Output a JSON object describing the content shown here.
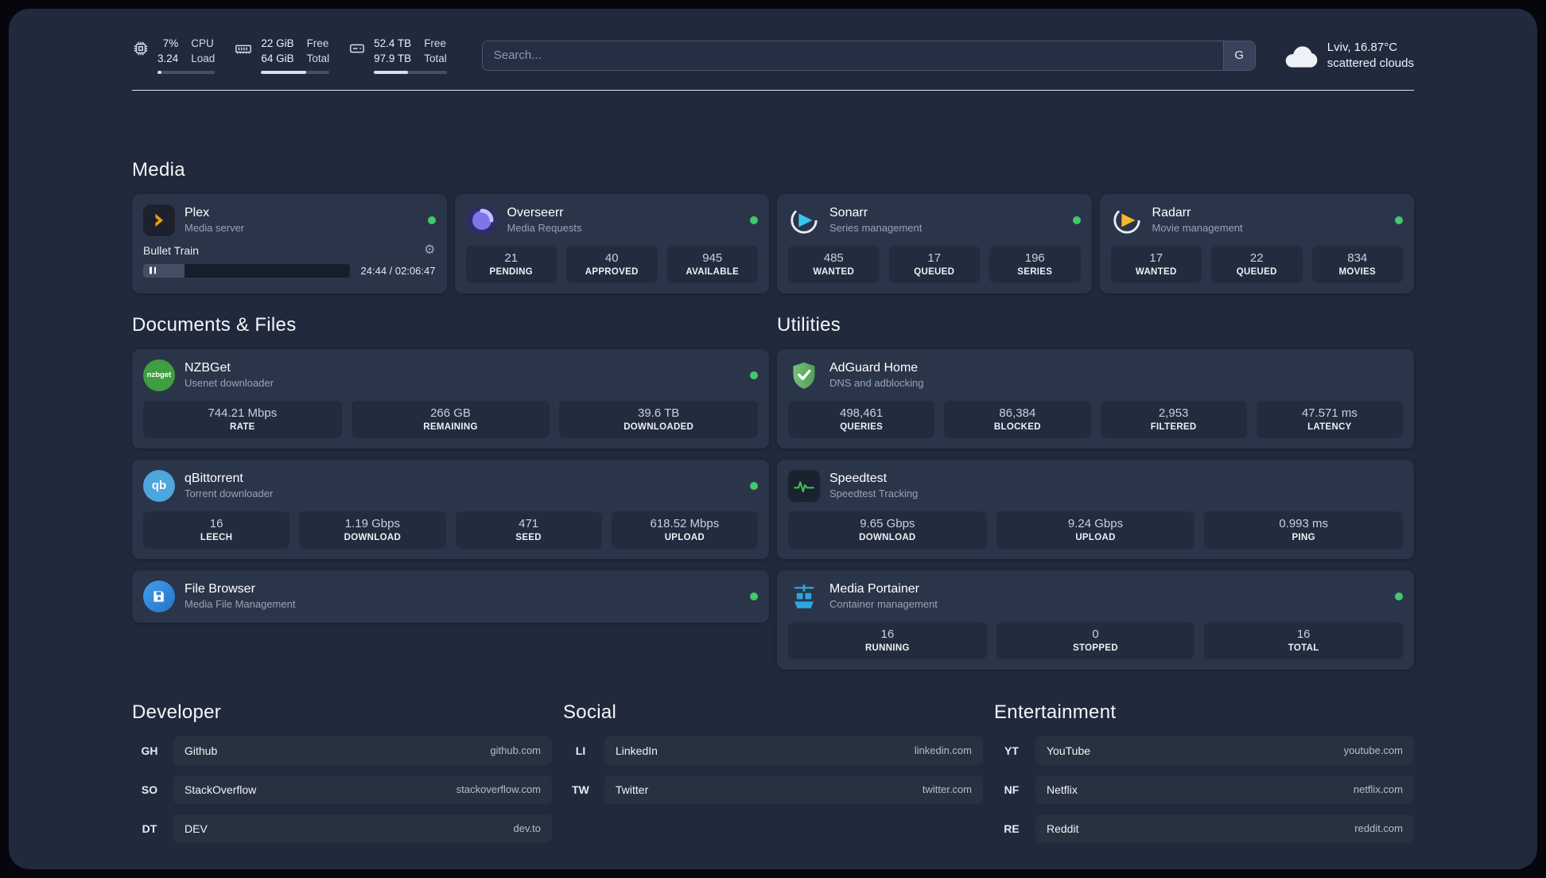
{
  "colors": {
    "status_online": "#41c96b",
    "plex_gold": "#e5a00d",
    "sonarr_blue": "#35c5f0",
    "radarr_yellow": "#f7b82a",
    "overseerr_purple": "#7d76e8",
    "nzbget_green": "#3f9e3f",
    "qbittorrent_blue": "#4da6dc",
    "filebrowser_blue": "#2f8fdf",
    "adguard_green": "#67b671",
    "speedtest_green": "#40c057",
    "portainer_blue": "#29a6dd"
  },
  "topbar": {
    "cpu": {
      "values": [
        "7%",
        "3.24"
      ],
      "labels": [
        "CPU",
        "Load"
      ],
      "progress": 7
    },
    "ram": {
      "values": [
        "22 GiB",
        "64 GiB"
      ],
      "labels": [
        "Free",
        "Total"
      ],
      "progress": 66
    },
    "disk": {
      "values": [
        "52.4 TB",
        "97.9 TB"
      ],
      "labels": [
        "Free",
        "Total"
      ],
      "progress": 47
    },
    "search": {
      "placeholder": "Search...",
      "engine_label": "G"
    },
    "weather": {
      "location": "Lviv, 16.87°C",
      "condition": "scattered clouds"
    }
  },
  "media": {
    "title": "Media",
    "apps": [
      {
        "name": "Plex",
        "subtitle": "Media server",
        "player": {
          "track": "Bullet Train",
          "time": "24:44 / 02:06:47",
          "progress": 20
        }
      },
      {
        "name": "Overseerr",
        "subtitle": "Media Requests",
        "stats": [
          {
            "value": "21",
            "label": "PENDING"
          },
          {
            "value": "40",
            "label": "APPROVED"
          },
          {
            "value": "945",
            "label": "AVAILABLE"
          }
        ]
      },
      {
        "name": "Sonarr",
        "subtitle": "Series management",
        "stats": [
          {
            "value": "485",
            "label": "WANTED"
          },
          {
            "value": "17",
            "label": "QUEUED"
          },
          {
            "value": "196",
            "label": "SERIES"
          }
        ]
      },
      {
        "name": "Radarr",
        "subtitle": "Movie management",
        "stats": [
          {
            "value": "17",
            "label": "WANTED"
          },
          {
            "value": "22",
            "label": "QUEUED"
          },
          {
            "value": "834",
            "label": "MOVIES"
          }
        ]
      }
    ]
  },
  "documents": {
    "title": "Documents & Files",
    "apps": [
      {
        "name": "NZBGet",
        "subtitle": "Usenet downloader",
        "icon_label": "nzbget",
        "stats": [
          {
            "value": "744.21 Mbps",
            "label": "RATE"
          },
          {
            "value": "266 GB",
            "label": "REMAINING"
          },
          {
            "value": "39.6 TB",
            "label": "DOWNLOADED"
          }
        ]
      },
      {
        "name": "qBittorrent",
        "subtitle": "Torrent downloader",
        "icon_label": "qb",
        "stats": [
          {
            "value": "16",
            "label": "LEECH"
          },
          {
            "value": "1.19 Gbps",
            "label": "DOWNLOAD"
          },
          {
            "value": "471",
            "label": "SEED"
          },
          {
            "value": "618.52 Mbps",
            "label": "UPLOAD"
          }
        ]
      },
      {
        "name": "File Browser",
        "subtitle": "Media File Management"
      }
    ]
  },
  "utilities": {
    "title": "Utilities",
    "apps": [
      {
        "name": "AdGuard Home",
        "subtitle": "DNS and adblocking",
        "stats": [
          {
            "value": "498,461",
            "label": "QUERIES"
          },
          {
            "value": "86,384",
            "label": "BLOCKED"
          },
          {
            "value": "2,953",
            "label": "FILTERED"
          },
          {
            "value": "47.571 ms",
            "label": "LATENCY"
          }
        ]
      },
      {
        "name": "Speedtest",
        "subtitle": "Speedtest Tracking",
        "stats": [
          {
            "value": "9.65 Gbps",
            "label": "DOWNLOAD"
          },
          {
            "value": "9.24 Gbps",
            "label": "UPLOAD"
          },
          {
            "value": "0.993 ms",
            "label": "PING"
          }
        ]
      },
      {
        "name": "Media Portainer",
        "subtitle": "Container management",
        "stats": [
          {
            "value": "16",
            "label": "RUNNING"
          },
          {
            "value": "0",
            "label": "STOPPED"
          },
          {
            "value": "16",
            "label": "TOTAL"
          }
        ]
      }
    ]
  },
  "bookmarks": [
    {
      "title": "Developer",
      "links": [
        {
          "abbr": "GH",
          "name": "Github",
          "url": "github.com"
        },
        {
          "abbr": "SO",
          "name": "StackOverflow",
          "url": "stackoverflow.com"
        },
        {
          "abbr": "DT",
          "name": "DEV",
          "url": "dev.to"
        }
      ]
    },
    {
      "title": "Social",
      "links": [
        {
          "abbr": "LI",
          "name": "LinkedIn",
          "url": "linkedin.com"
        },
        {
          "abbr": "TW",
          "name": "Twitter",
          "url": "twitter.com"
        }
      ]
    },
    {
      "title": "Entertainment",
      "links": [
        {
          "abbr": "YT",
          "name": "YouTube",
          "url": "youtube.com"
        },
        {
          "abbr": "NF",
          "name": "Netflix",
          "url": "netflix.com"
        },
        {
          "abbr": "RE",
          "name": "Reddit",
          "url": "reddit.com"
        }
      ]
    }
  ],
  "icons": {
    "gear": "⚙"
  }
}
